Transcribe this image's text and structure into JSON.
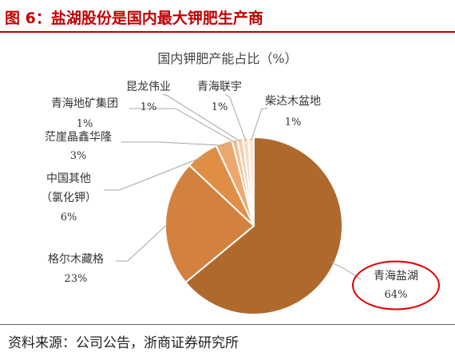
{
  "figure_title": "图 6：盐湖股份是国内最大钾肥生产商",
  "source_note": "资料来源：公司公告，浙商证券研究所",
  "chart_data": {
    "type": "pie",
    "title": "国内钾肥产能占比（%）",
    "slices": [
      {
        "label": "青海盐湖",
        "value": 64,
        "value_label": "64%",
        "color": "#b0692c",
        "highlighted": true
      },
      {
        "label": "格尔木藏格",
        "value": 23,
        "value_label": "23%",
        "color": "#d2813e"
      },
      {
        "label": "中国其他（氯化钾）",
        "label_lines": [
          "中国其他",
          "（氯化钾）"
        ],
        "value": 6,
        "value_label": "6%",
        "color": "#e08e45"
      },
      {
        "label": "茫崖晶鑫华隆",
        "value": 3,
        "value_label": "3%",
        "color": "#eca86e"
      },
      {
        "label": "青海地矿集团",
        "value": 1,
        "value_label": "1%",
        "color": "#f2c095"
      },
      {
        "label": "昆龙伟业",
        "value": 1,
        "value_label": "1%",
        "color": "#f5cfae"
      },
      {
        "label": "青海联宇",
        "value": 1,
        "value_label": "1%",
        "color": "#f8dcc4"
      },
      {
        "label": "柴达木盆地",
        "value": 1,
        "value_label": "1%",
        "color": "#fbe8d8"
      }
    ],
    "highlight_color": "#e00000",
    "leader_color": "#a6a6a6"
  }
}
